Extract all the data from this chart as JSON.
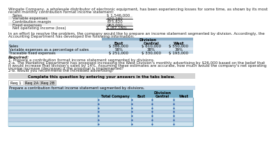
{
  "title_line1": "Wingate Company, a wholesale distributor of electronic equipment, has been experiencing losses for some time, as shown by its most",
  "title_line2": "recent monthly contribution format income statement:",
  "is_rows": [
    [
      "Sales",
      "$ 1,546,000"
    ],
    [
      "Variable expenses",
      "670,180"
    ],
    [
      "Contribution margin",
      "875,820"
    ],
    [
      "Fixed expenses",
      "963,000"
    ],
    [
      "Net operating income (loss)",
      "$ (87,180)"
    ]
  ],
  "is_shaded": [
    1,
    3
  ],
  "is_underline": [
    1,
    3
  ],
  "is_double_underline": [
    4
  ],
  "mid_line1": "In an effort to resolve the problem, the company would like to prepare an income statement segmented by division. Accordingly, the",
  "mid_line2": "Accounting Department has developed the following information:",
  "div_header": "Division",
  "div_cols": [
    "East",
    "Central",
    "West"
  ],
  "div_rows": [
    [
      "Sales",
      "$ 386,000",
      "$ 610,000",
      "$ 550,000"
    ],
    [
      "Variable expenses as a percentage of sales",
      "58%",
      "38%",
      "39%"
    ],
    [
      "Traceable fixed expenses",
      "$ 251,000",
      "$ 330,000",
      "$ 193,000"
    ]
  ],
  "div_table_bg": "#c5d9e8",
  "div_header_bg": "#8fb0c8",
  "req_lines": [
    "Required:",
    "1. Prepare a contribution format income statement segmented by divisions.",
    "2-a. The Marketing Department has proposed increasing the West Division's monthly advertising by $26,000 based on the belief that",
    "it would increase that division's sales by 14%. Assuming these estimates are accurate, how much would the company's net operating",
    "income increase (decrease) if the proposal is implemented?",
    "2-b. Would you recommend the increased advertising?"
  ],
  "complete_box_text": "Complete this question by entering your answers in the tabs below.",
  "complete_box_bg": "#d4d4d4",
  "tabs": [
    "Req 1",
    "Req 2A",
    "Req 2B"
  ],
  "active_tab_idx": 0,
  "tab_active_bg": "#ffffff",
  "tab_inactive_bg": "#d8d8d8",
  "tab_border": "#999999",
  "instruction_text": "Prepare a contribution format income statement segmented by divisions.",
  "instruction_bg": "#ccdcea",
  "bt_cols": [
    "Total Company",
    "East",
    "Central",
    "West"
  ],
  "bt_num_rows": 7,
  "bt_header_bg": "#7aafc8",
  "bt_row_bg1": "#d0e4f0",
  "bt_row_bg2": "#bcd0e4",
  "bt_border": "#7aafc8",
  "white": "#ffffff",
  "text_dark": "#222222"
}
